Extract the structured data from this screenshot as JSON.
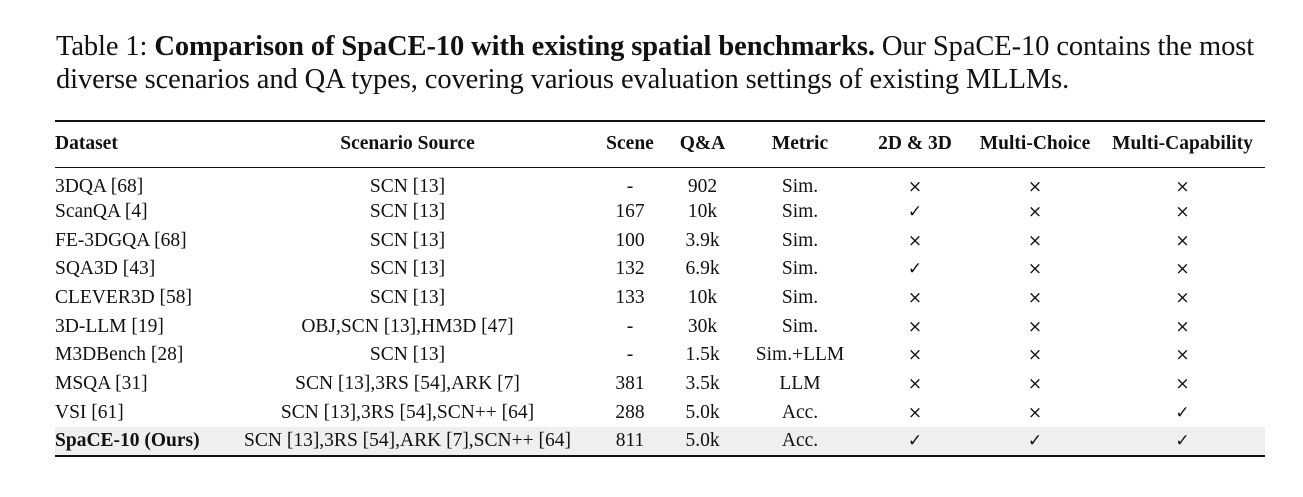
{
  "caption": {
    "prefix": "Table 1: ",
    "bold": "Comparison of SpaCE-10 with existing spatial benchmarks.",
    "rest": " Our SpaCE-10 contains the most diverse scenarios and QA types, covering various evaluation settings of existing MLLMs."
  },
  "table": {
    "headers": [
      "Dataset",
      "Scenario Source",
      "Scene",
      "Q&A",
      "Metric",
      "2D & 3D",
      "Multi-Choice",
      "Multi-Capability"
    ],
    "rows": [
      [
        "3DQA [68]",
        "SCN [13]",
        "-",
        "902",
        "Sim.",
        "×",
        "×",
        "×"
      ],
      [
        "ScanQA [4]",
        "SCN [13]",
        "167",
        "10k",
        "Sim.",
        "✓",
        "×",
        "×"
      ],
      [
        "FE-3DGQA [68]",
        "SCN [13]",
        "100",
        "3.9k",
        "Sim.",
        "×",
        "×",
        "×"
      ],
      [
        "SQA3D [43]",
        "SCN [13]",
        "132",
        "6.9k",
        "Sim.",
        "✓",
        "×",
        "×"
      ],
      [
        "CLEVER3D [58]",
        "SCN [13]",
        "133",
        "10k",
        "Sim.",
        "×",
        "×",
        "×"
      ],
      [
        "3D-LLM [19]",
        "OBJ,SCN [13],HM3D [47]",
        "-",
        "30k",
        "Sim.",
        "×",
        "×",
        "×"
      ],
      [
        "M3DBench [28]",
        "SCN [13]",
        "-",
        "1.5k",
        "Sim.+LLM",
        "×",
        "×",
        "×"
      ],
      [
        "MSQA [31]",
        "SCN [13],3RS [54],ARK [7]",
        "381",
        "3.5k",
        "LLM",
        "×",
        "×",
        "×"
      ],
      [
        "VSI [61]",
        "SCN [13],3RS [54],SCN++ [64]",
        "288",
        "5.0k",
        "Acc.",
        "×",
        "×",
        "✓"
      ],
      [
        "SpaCE-10 (Ours)",
        "SCN [13],3RS [54],ARK [7],SCN++ [64]",
        "811",
        "5.0k",
        "Acc.",
        "✓",
        "✓",
        "✓"
      ]
    ]
  }
}
